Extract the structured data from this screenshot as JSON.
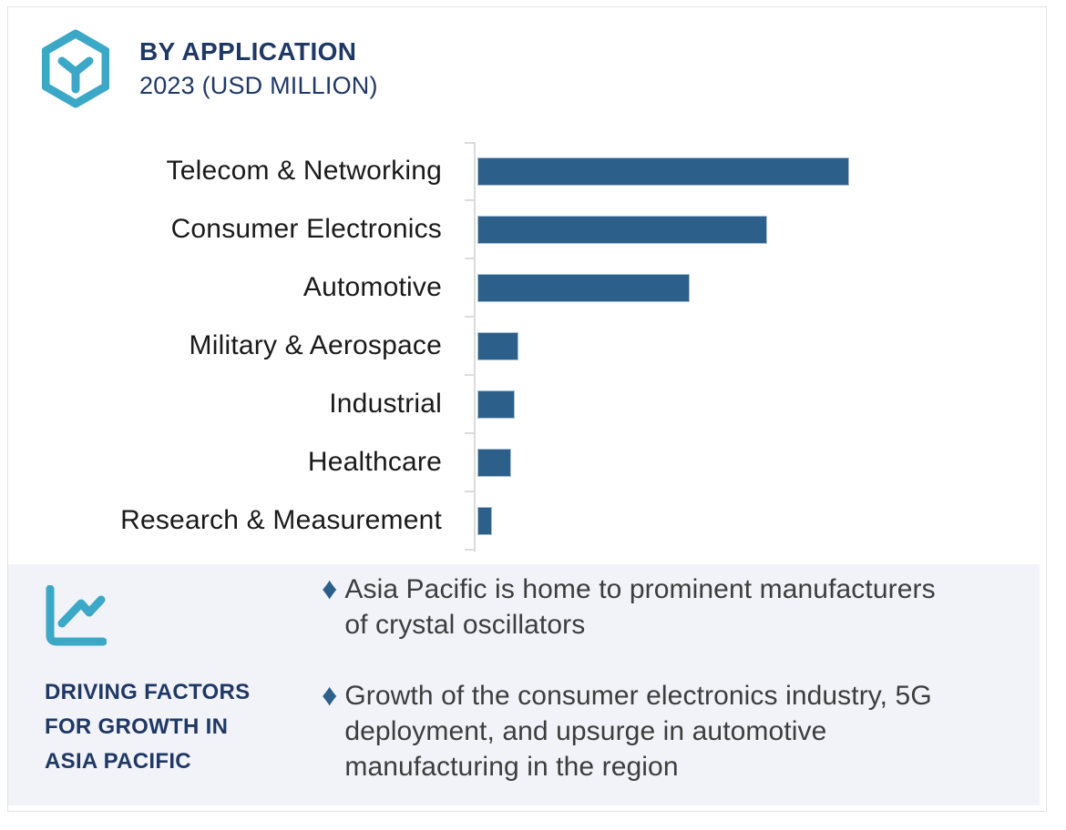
{
  "header": {
    "title": "BY APPLICATION",
    "subtitle": "2023 (USD MILLION)",
    "logo_icon": "hexagon-cube"
  },
  "chart_data": {
    "type": "bar",
    "orientation": "horizontal",
    "title": "BY APPLICATION 2023 (USD MILLION)",
    "categories": [
      "Telecom & Networking",
      "Consumer Electronics",
      "Automotive",
      "Military & Aerospace",
      "Industrial",
      "Healthcare",
      "Research & Measurement"
    ],
    "values_relative_pct_of_max": [
      100,
      78,
      57,
      11,
      10,
      9,
      4
    ],
    "value_labels_shown": false,
    "axis_tick_labels": "none",
    "xlabel": "",
    "ylabel": "",
    "grid": false,
    "legend": false,
    "bar_color": "#2D5F8B"
  },
  "panel": {
    "icon": "line-chart",
    "title_lines": [
      "DRIVING FACTORS",
      "FOR GROWTH IN",
      "ASIA PACIFIC"
    ],
    "bullet_glyph": "♦",
    "bullets": [
      {
        "lines": [
          "Asia Pacific is home to prominent manufacturers",
          "of crystal oscillators"
        ]
      },
      {
        "lines": [
          "Growth of the consumer electronics industry, 5G",
          "deployment, and upsurge in automotive",
          "manufacturing in the region"
        ]
      }
    ]
  },
  "colors": {
    "bar_blue": "#2D5F8B",
    "bar_border": "#A9BFD3",
    "accent_teal": "#3BA8C7",
    "navy": "#1F3864",
    "panel_bg": "#F2F3F8",
    "axis_gray": "#DCDCDC",
    "body_text": "#3D3D3D",
    "frame_border": "#E1E3E9"
  }
}
